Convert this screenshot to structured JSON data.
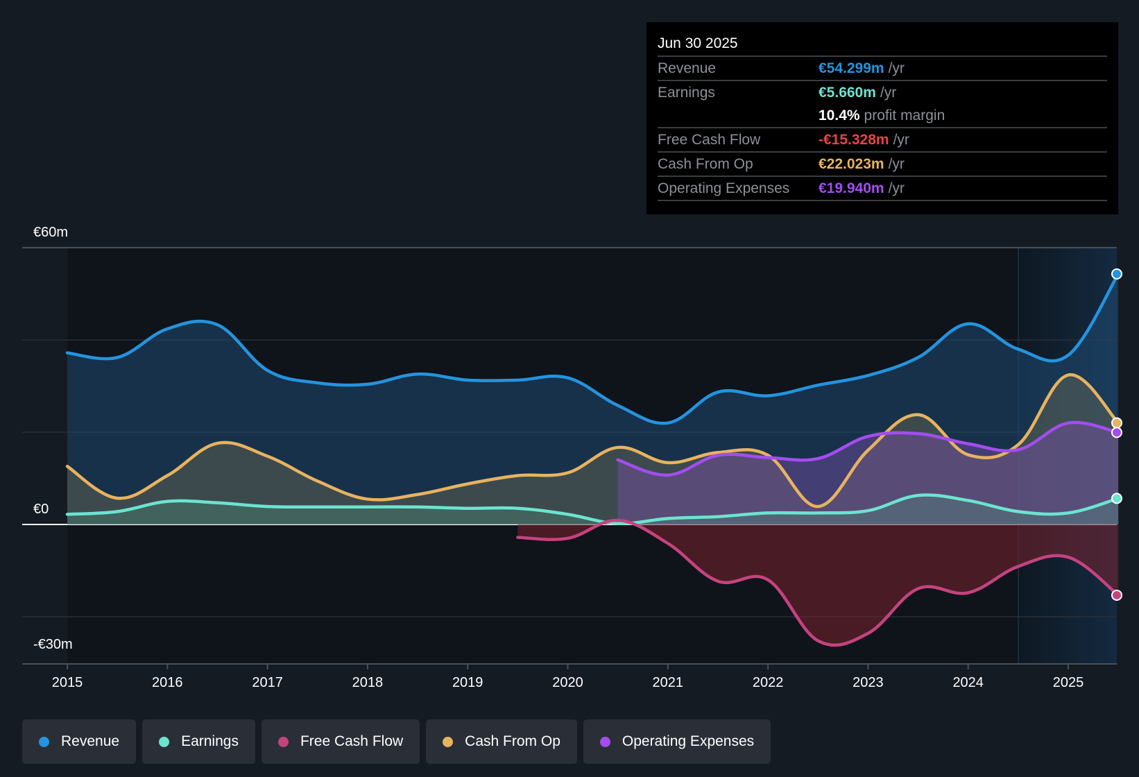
{
  "tooltip": {
    "date": "Jun 30 2025",
    "rows": [
      {
        "label": "Revenue",
        "value": "€54.299m",
        "unit": "/yr",
        "color": "#2394df"
      },
      {
        "label": "Earnings",
        "value": "€5.660m",
        "unit": "/yr",
        "color": "#6ce4cf"
      },
      {
        "label": "",
        "value": "10.4%",
        "unit": "profit margin",
        "color": "#ffffff"
      },
      {
        "label": "Free Cash Flow",
        "value": "-€15.328m",
        "unit": "/yr",
        "color": "#e64545"
      },
      {
        "label": "Cash From Op",
        "value": "€22.023m",
        "unit": "/yr",
        "color": "#e8b35f"
      },
      {
        "label": "Operating Expenses",
        "value": "€19.940m",
        "unit": "/yr",
        "color": "#a34df0"
      }
    ]
  },
  "legend": [
    {
      "label": "Revenue",
      "color": "#2394df"
    },
    {
      "label": "Earnings",
      "color": "#6ce4cf"
    },
    {
      "label": "Free Cash Flow",
      "color": "#c4437f"
    },
    {
      "label": "Cash From Op",
      "color": "#e8b35f"
    },
    {
      "label": "Operating Expenses",
      "color": "#a34df0"
    }
  ],
  "chart_data": {
    "type": "area",
    "title": "",
    "xlabel": "",
    "ylabel": "",
    "currency": "€",
    "ylim": [
      -30,
      60
    ],
    "y_tick_labels": [
      {
        "value": 60,
        "label": "€60m"
      },
      {
        "value": 0,
        "label": "€0"
      },
      {
        "value": -30,
        "label": "-€30m"
      }
    ],
    "y_gridlines": [
      60,
      40,
      20,
      0,
      -20
    ],
    "xlim": [
      2014.55,
      2025.5
    ],
    "x_ticks": [
      2015,
      2016,
      2017,
      2018,
      2019,
      2020,
      2021,
      2022,
      2023,
      2024,
      2025
    ],
    "x_tick_labels": [
      "2015",
      "2016",
      "2017",
      "2018",
      "2019",
      "2020",
      "2021",
      "2022",
      "2023",
      "2024",
      "2025"
    ],
    "highlight_region_start": 2024.5,
    "grid": true,
    "legend_position": "bottom",
    "x": [
      2015.0,
      2015.5,
      2016.0,
      2016.5,
      2017.0,
      2017.5,
      2018.0,
      2018.5,
      2019.0,
      2019.5,
      2020.0,
      2020.5,
      2021.0,
      2021.5,
      2022.0,
      2022.5,
      2023.0,
      2023.5,
      2024.0,
      2024.5,
      2025.0,
      2025.5
    ],
    "series": [
      {
        "name": "Revenue",
        "color": "#2394df",
        "values": [
          37.2,
          36.2,
          42.4,
          43.3,
          33.4,
          30.7,
          30.4,
          32.6,
          31.3,
          31.3,
          31.8,
          25.8,
          22.0,
          28.7,
          27.9,
          30.2,
          32.3,
          36.2,
          43.5,
          38.0,
          36.7,
          54.3
        ]
      },
      {
        "name": "Earnings",
        "color": "#6ce4cf",
        "values": [
          2.2,
          2.8,
          5.0,
          4.7,
          3.9,
          3.8,
          3.8,
          3.8,
          3.5,
          3.5,
          2.2,
          0.2,
          1.3,
          1.7,
          2.5,
          2.5,
          3.0,
          6.3,
          5.2,
          2.8,
          2.5,
          5.66
        ]
      },
      {
        "name": "Free Cash Flow",
        "color": "#c4437f",
        "values": [
          null,
          null,
          null,
          null,
          null,
          null,
          null,
          null,
          null,
          -2.8,
          -3.0,
          0.9,
          -4.1,
          -12.3,
          -12.0,
          -25.2,
          -23.6,
          -13.9,
          -14.8,
          -9.1,
          -7.1,
          -15.33
        ]
      },
      {
        "name": "Cash From Op",
        "color": "#e8b35f",
        "values": [
          12.6,
          5.7,
          10.6,
          17.6,
          14.8,
          9.4,
          5.5,
          6.5,
          8.8,
          10.6,
          11.2,
          16.7,
          13.4,
          15.6,
          15.0,
          3.9,
          16.1,
          23.8,
          15.1,
          17.3,
          32.4,
          22.02
        ]
      },
      {
        "name": "Operating Expenses",
        "color": "#a34df0",
        "values": [
          null,
          null,
          null,
          null,
          null,
          null,
          null,
          null,
          null,
          null,
          null,
          14.0,
          10.7,
          15.0,
          14.5,
          14.3,
          19.1,
          19.7,
          17.5,
          16.2,
          22.0,
          19.94
        ]
      }
    ]
  }
}
